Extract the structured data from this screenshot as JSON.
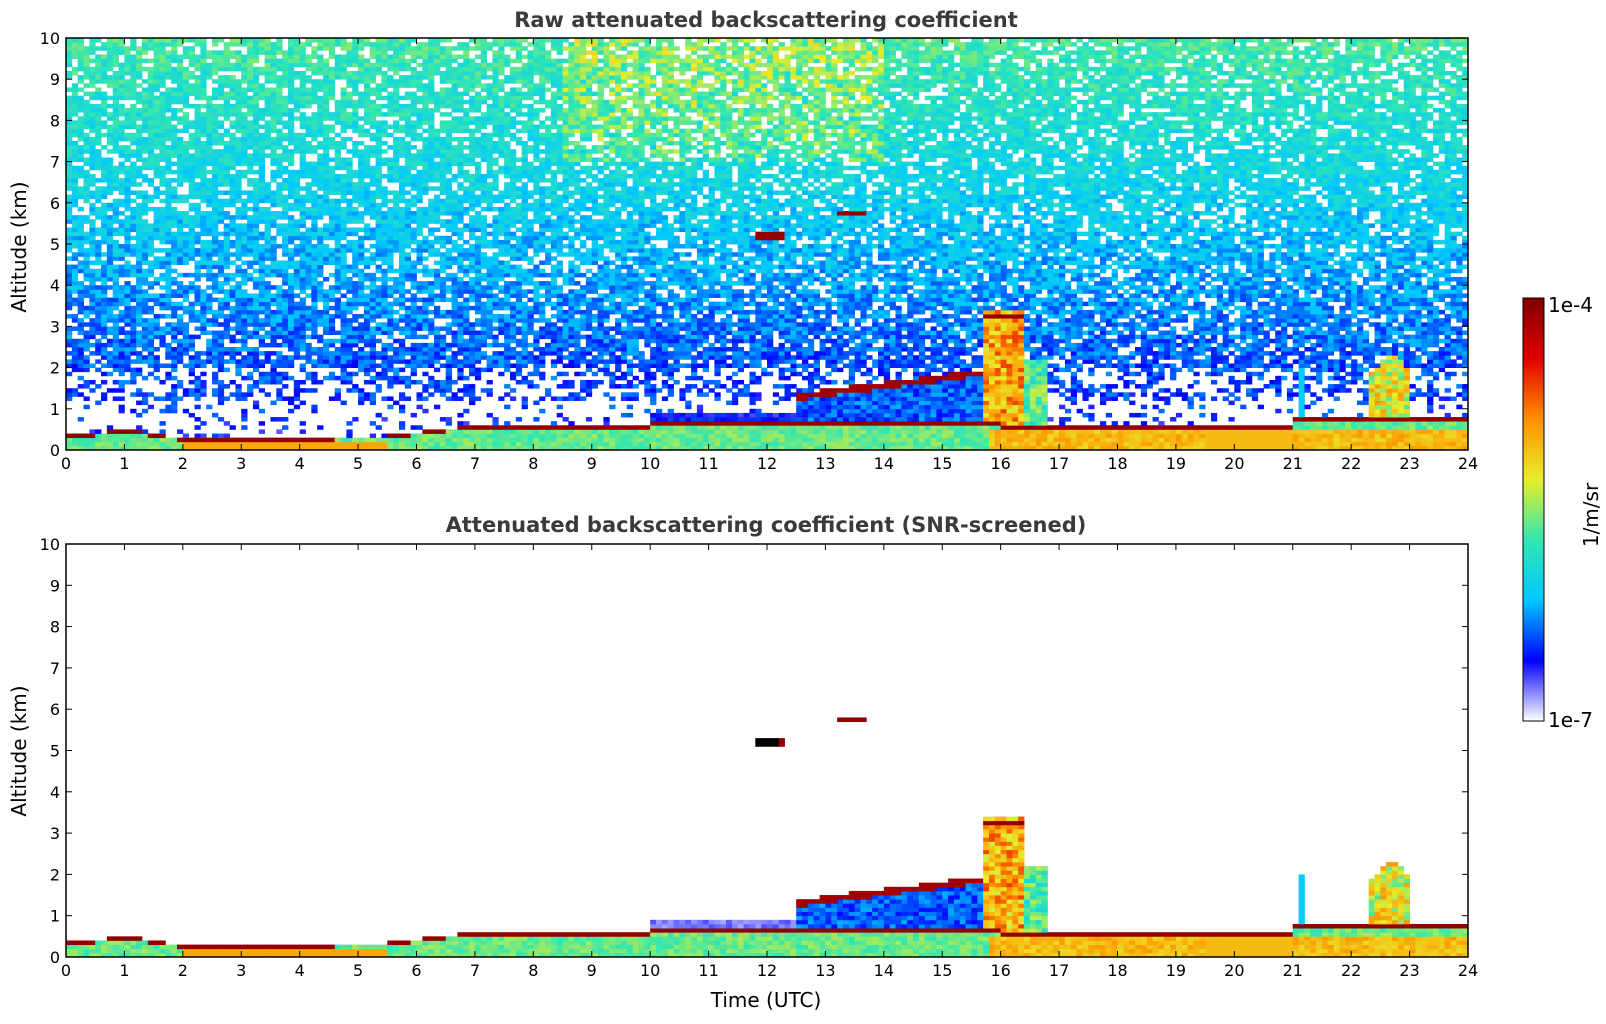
{
  "chart_data": [
    {
      "type": "heatmap",
      "title": "Raw attenuated backscattering coefficient",
      "xlabel": "",
      "ylabel": "Altitude (km)",
      "xlim": [
        0,
        24
      ],
      "ylim": [
        0,
        10
      ],
      "x_ticks": [
        "0",
        "1",
        "2",
        "3",
        "4",
        "5",
        "6",
        "7",
        "8",
        "9",
        "10",
        "11",
        "12",
        "13",
        "14",
        "15",
        "16",
        "17",
        "18",
        "19",
        "20",
        "21",
        "22",
        "23",
        "24"
      ],
      "y_ticks": [
        "0",
        "1",
        "2",
        "3",
        "4",
        "5",
        "6",
        "7",
        "8",
        "9",
        "10"
      ],
      "features": [
        {
          "kind": "boundary_layer",
          "time": [
            0,
            10.0
          ],
          "top_km": 0.6,
          "level": 0.55
        },
        {
          "kind": "layer_top_strong",
          "points": [
            [
              0,
              0.35
            ],
            [
              1,
              0.5
            ],
            [
              2,
              0.3
            ],
            [
              4,
              0.3
            ],
            [
              5.5,
              0.35
            ],
            [
              7,
              0.6
            ],
            [
              10,
              0.6
            ]
          ],
          "level": 0.97
        },
        {
          "kind": "cloud",
          "time": [
            11.8,
            12.3
          ],
          "alt_km": [
            5.05,
            5.3
          ],
          "level": 0.97
        },
        {
          "kind": "cloud",
          "time": [
            13.2,
            13.7
          ],
          "alt_km": [
            5.7,
            5.85
          ],
          "level": 0.97
        },
        {
          "kind": "cloud",
          "time": [
            15.7,
            16.4
          ],
          "alt_km": [
            0.5,
            3.4
          ],
          "level": 0.8
        },
        {
          "kind": "cloud",
          "time": [
            22.3,
            23.0
          ],
          "alt_km": [
            0.5,
            2.4
          ],
          "level": 0.7
        },
        {
          "kind": "elevated_layer",
          "time": [
            12.5,
            15.8
          ],
          "alt_km": [
            1.3,
            2.0
          ],
          "level": 0.95
        }
      ]
    },
    {
      "type": "heatmap",
      "title": "Attenuated backscattering coefficient (SNR-screened)",
      "xlabel": "Time (UTC)",
      "ylabel": "Altitude (km)",
      "xlim": [
        0,
        24
      ],
      "ylim": [
        0,
        10
      ],
      "x_ticks": [
        "0",
        "1",
        "2",
        "3",
        "4",
        "5",
        "6",
        "7",
        "8",
        "9",
        "10",
        "11",
        "12",
        "13",
        "14",
        "15",
        "16",
        "17",
        "18",
        "19",
        "20",
        "21",
        "22",
        "23",
        "24"
      ],
      "y_ticks": [
        "0",
        "1",
        "2",
        "3",
        "4",
        "5",
        "6",
        "7",
        "8",
        "9",
        "10"
      ],
      "screened": true
    }
  ],
  "colorbar": {
    "label": "1/m/sr",
    "max_label": "1e-4",
    "min_label": "1e-7",
    "colormap": "jet",
    "colors": [
      "#ffffff",
      "#0000ff",
      "#00c8ff",
      "#33e6b0",
      "#e8ee2a",
      "#ff9000",
      "#e00000",
      "#800000"
    ]
  }
}
